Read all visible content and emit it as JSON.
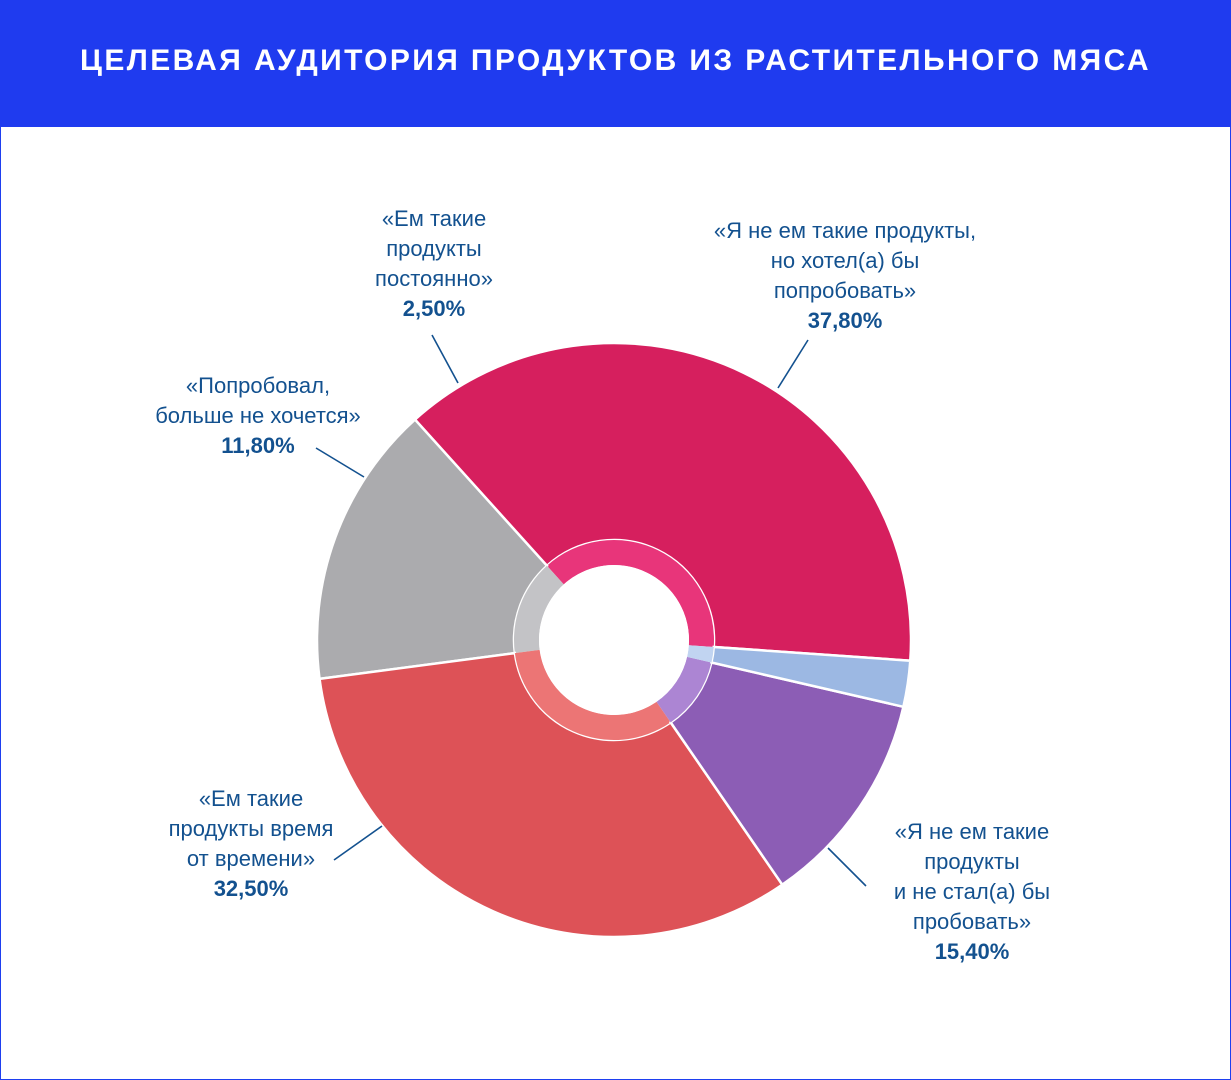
{
  "header": {
    "title": "ЦЕЛЕВАЯ АУДИТОРИЯ ПРОДУКТОВ ИЗ РАСТИТЕЛЬНОГО МЯСА"
  },
  "chart_data": {
    "type": "pie",
    "title": "ЦЕЛЕВАЯ АУДИТОРИЯ ПРОДУКТОВ ИЗ РАСТИТЕЛЬНОГО МЯСА",
    "donut": true,
    "slices": [
      {
        "label_lines": [
          "«Я не ем такие продукты,",
          "но хотел(а) бы",
          "попробовать»"
        ],
        "value_label": "37,80%",
        "value": 37.8,
        "color": "#d61f5e",
        "inner_color": "#e8357a"
      },
      {
        "label_lines": [
          "«Я не ем такие",
          "продукты",
          "и не стал(а) бы",
          "пробовать»"
        ],
        "value_label": "15,40%",
        "value": 15.4,
        "color": "#ababae",
        "inner_color": "#c3c3c6"
      },
      {
        "label_lines": [
          "«Ем такие",
          "продукты время",
          "от времени»"
        ],
        "value_label": "32,50%",
        "value": 32.5,
        "color": "#dd5257",
        "inner_color": "#ec7575"
      },
      {
        "label_lines": [
          "«Попробовал,",
          "больше не хочется»"
        ],
        "value_label": "11,80%",
        "value": 11.8,
        "color": "#8c5db5",
        "inner_color": "#ac85d3"
      },
      {
        "label_lines": [
          "«Ем такие",
          "продукты",
          "постоянно»"
        ],
        "value_label": "2,50%",
        "value": 2.5,
        "color": "#9cb8e3",
        "inner_color": "#c1d4f1"
      }
    ]
  }
}
